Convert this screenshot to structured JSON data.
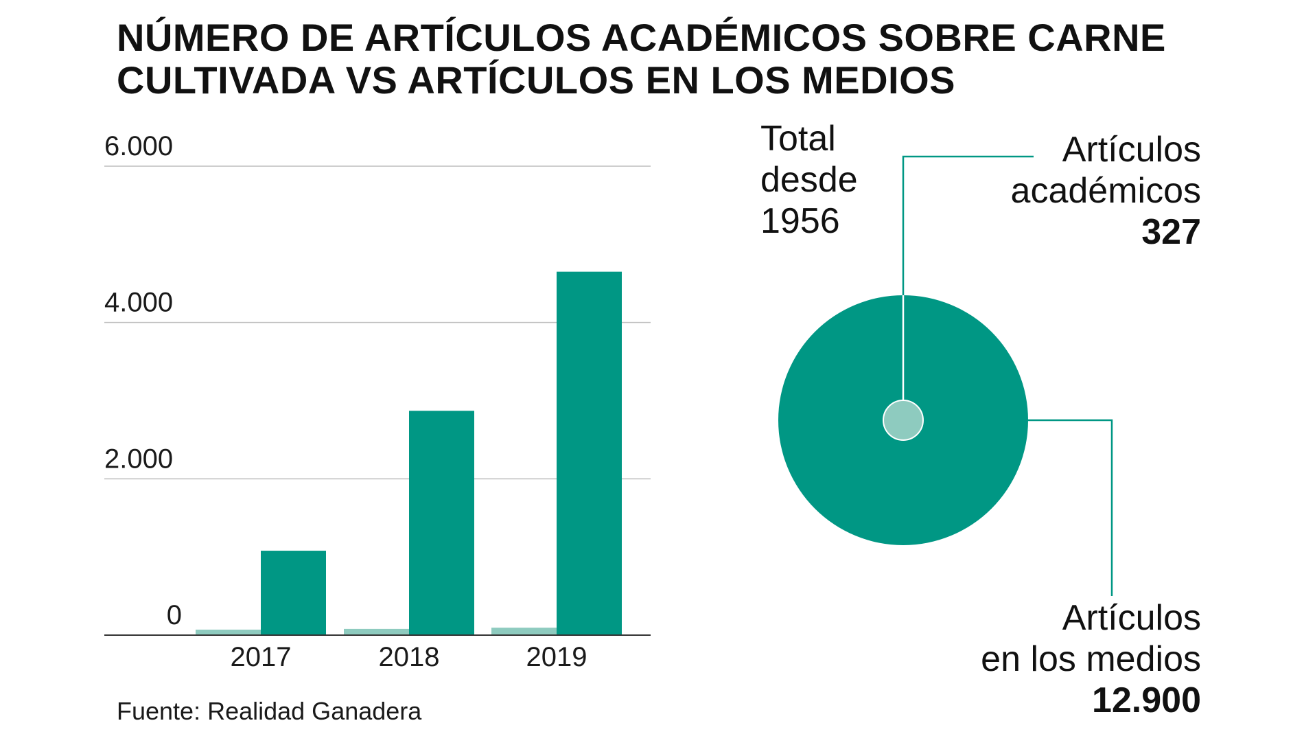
{
  "title": {
    "line1": "NÚMERO DE ARTÍCULOS ACADÉMICOS SOBRE CARNE",
    "line2": "CULTIVADA VS ARTÍCULOS EN LOS MEDIOS"
  },
  "source": "Fuente: Realidad Ganadera",
  "colors": {
    "academic": "#8ecbbf",
    "media": "#009784",
    "grid": "#bdbdbd",
    "axis": "#333333",
    "leader": "#009784"
  },
  "chart_data": [
    {
      "type": "bar",
      "categories": [
        "2017",
        "2018",
        "2019"
      ],
      "series": [
        {
          "key": "academic",
          "values": [
            70,
            80,
            95
          ]
        },
        {
          "key": "media",
          "values": [
            1080,
            2870,
            4650
          ]
        }
      ],
      "yticks": [
        {
          "value": 0,
          "label": "0"
        },
        {
          "value": 2000,
          "label": "2.000"
        },
        {
          "value": 4000,
          "label": "4.000"
        },
        {
          "value": 6000,
          "label": "6.000"
        }
      ],
      "ylim": [
        0,
        6000
      ],
      "grid": true
    },
    {
      "type": "pie",
      "heading": [
        "Total",
        "desde",
        "1956"
      ],
      "slices": [
        {
          "key": "academic",
          "label": [
            "Artículos",
            "académicos"
          ],
          "value": 327,
          "value_label": "327"
        },
        {
          "key": "media",
          "label": [
            "Artículos",
            "en los medios"
          ],
          "value": 12900,
          "value_label": "12.900"
        }
      ]
    }
  ]
}
